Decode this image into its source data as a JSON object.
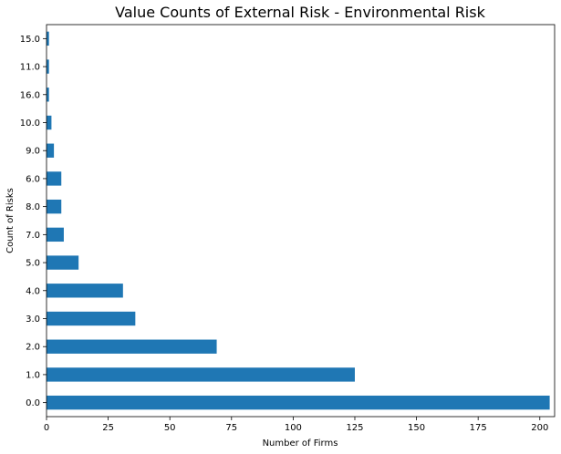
{
  "chart_data": {
    "type": "bar",
    "orientation": "horizontal",
    "title": "Value Counts of External Risk - Environmental Risk",
    "xlabel": "Number of Firms",
    "ylabel": "Count of Risks",
    "categories": [
      "0.0",
      "1.0",
      "2.0",
      "3.0",
      "4.0",
      "5.0",
      "7.0",
      "8.0",
      "6.0",
      "9.0",
      "10.0",
      "16.0",
      "11.0",
      "15.0"
    ],
    "values": [
      204,
      125,
      69,
      36,
      31,
      13,
      7,
      6,
      6,
      3,
      2,
      1,
      1,
      1
    ],
    "xlim": [
      0,
      206
    ],
    "xticks": [
      0,
      25,
      50,
      75,
      100,
      125,
      150,
      175,
      200
    ],
    "grid": false,
    "bar_color": "#1f77b4"
  }
}
